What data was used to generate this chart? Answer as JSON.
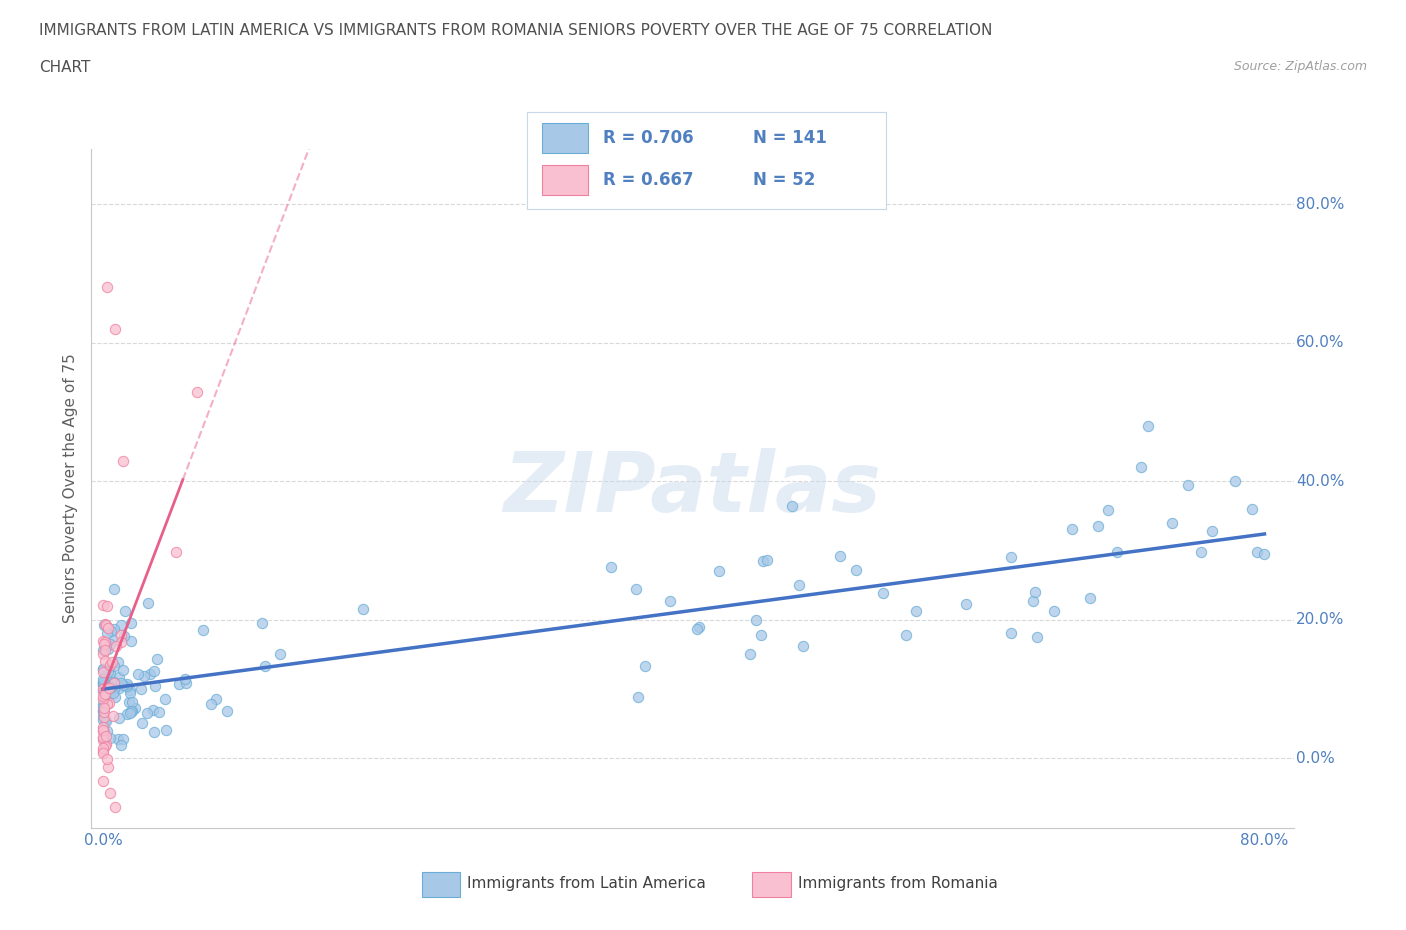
{
  "title_line1": "IMMIGRANTS FROM LATIN AMERICA VS IMMIGRANTS FROM ROMANIA SENIORS POVERTY OVER THE AGE OF 75 CORRELATION",
  "title_line2": "CHART",
  "source_text": "Source: ZipAtlas.com",
  "ylabel": "Seniors Poverty Over the Age of 75",
  "watermark": "ZIPatlas",
  "color_blue": "#a8c8e8",
  "color_blue_edge": "#6aaed6",
  "color_pink": "#f8c0d0",
  "color_pink_edge": "#f080a0",
  "color_blue_line": "#4472c4",
  "color_pink_line": "#e8608a",
  "background_color": "#ffffff",
  "grid_color": "#d0d0d0",
  "title_color": "#505050",
  "axis_label_color": "#606060",
  "tick_label_color": "#5080c0",
  "legend_box_color": "#e8f0f8",
  "legend_box_edge": "#c0d0e0"
}
